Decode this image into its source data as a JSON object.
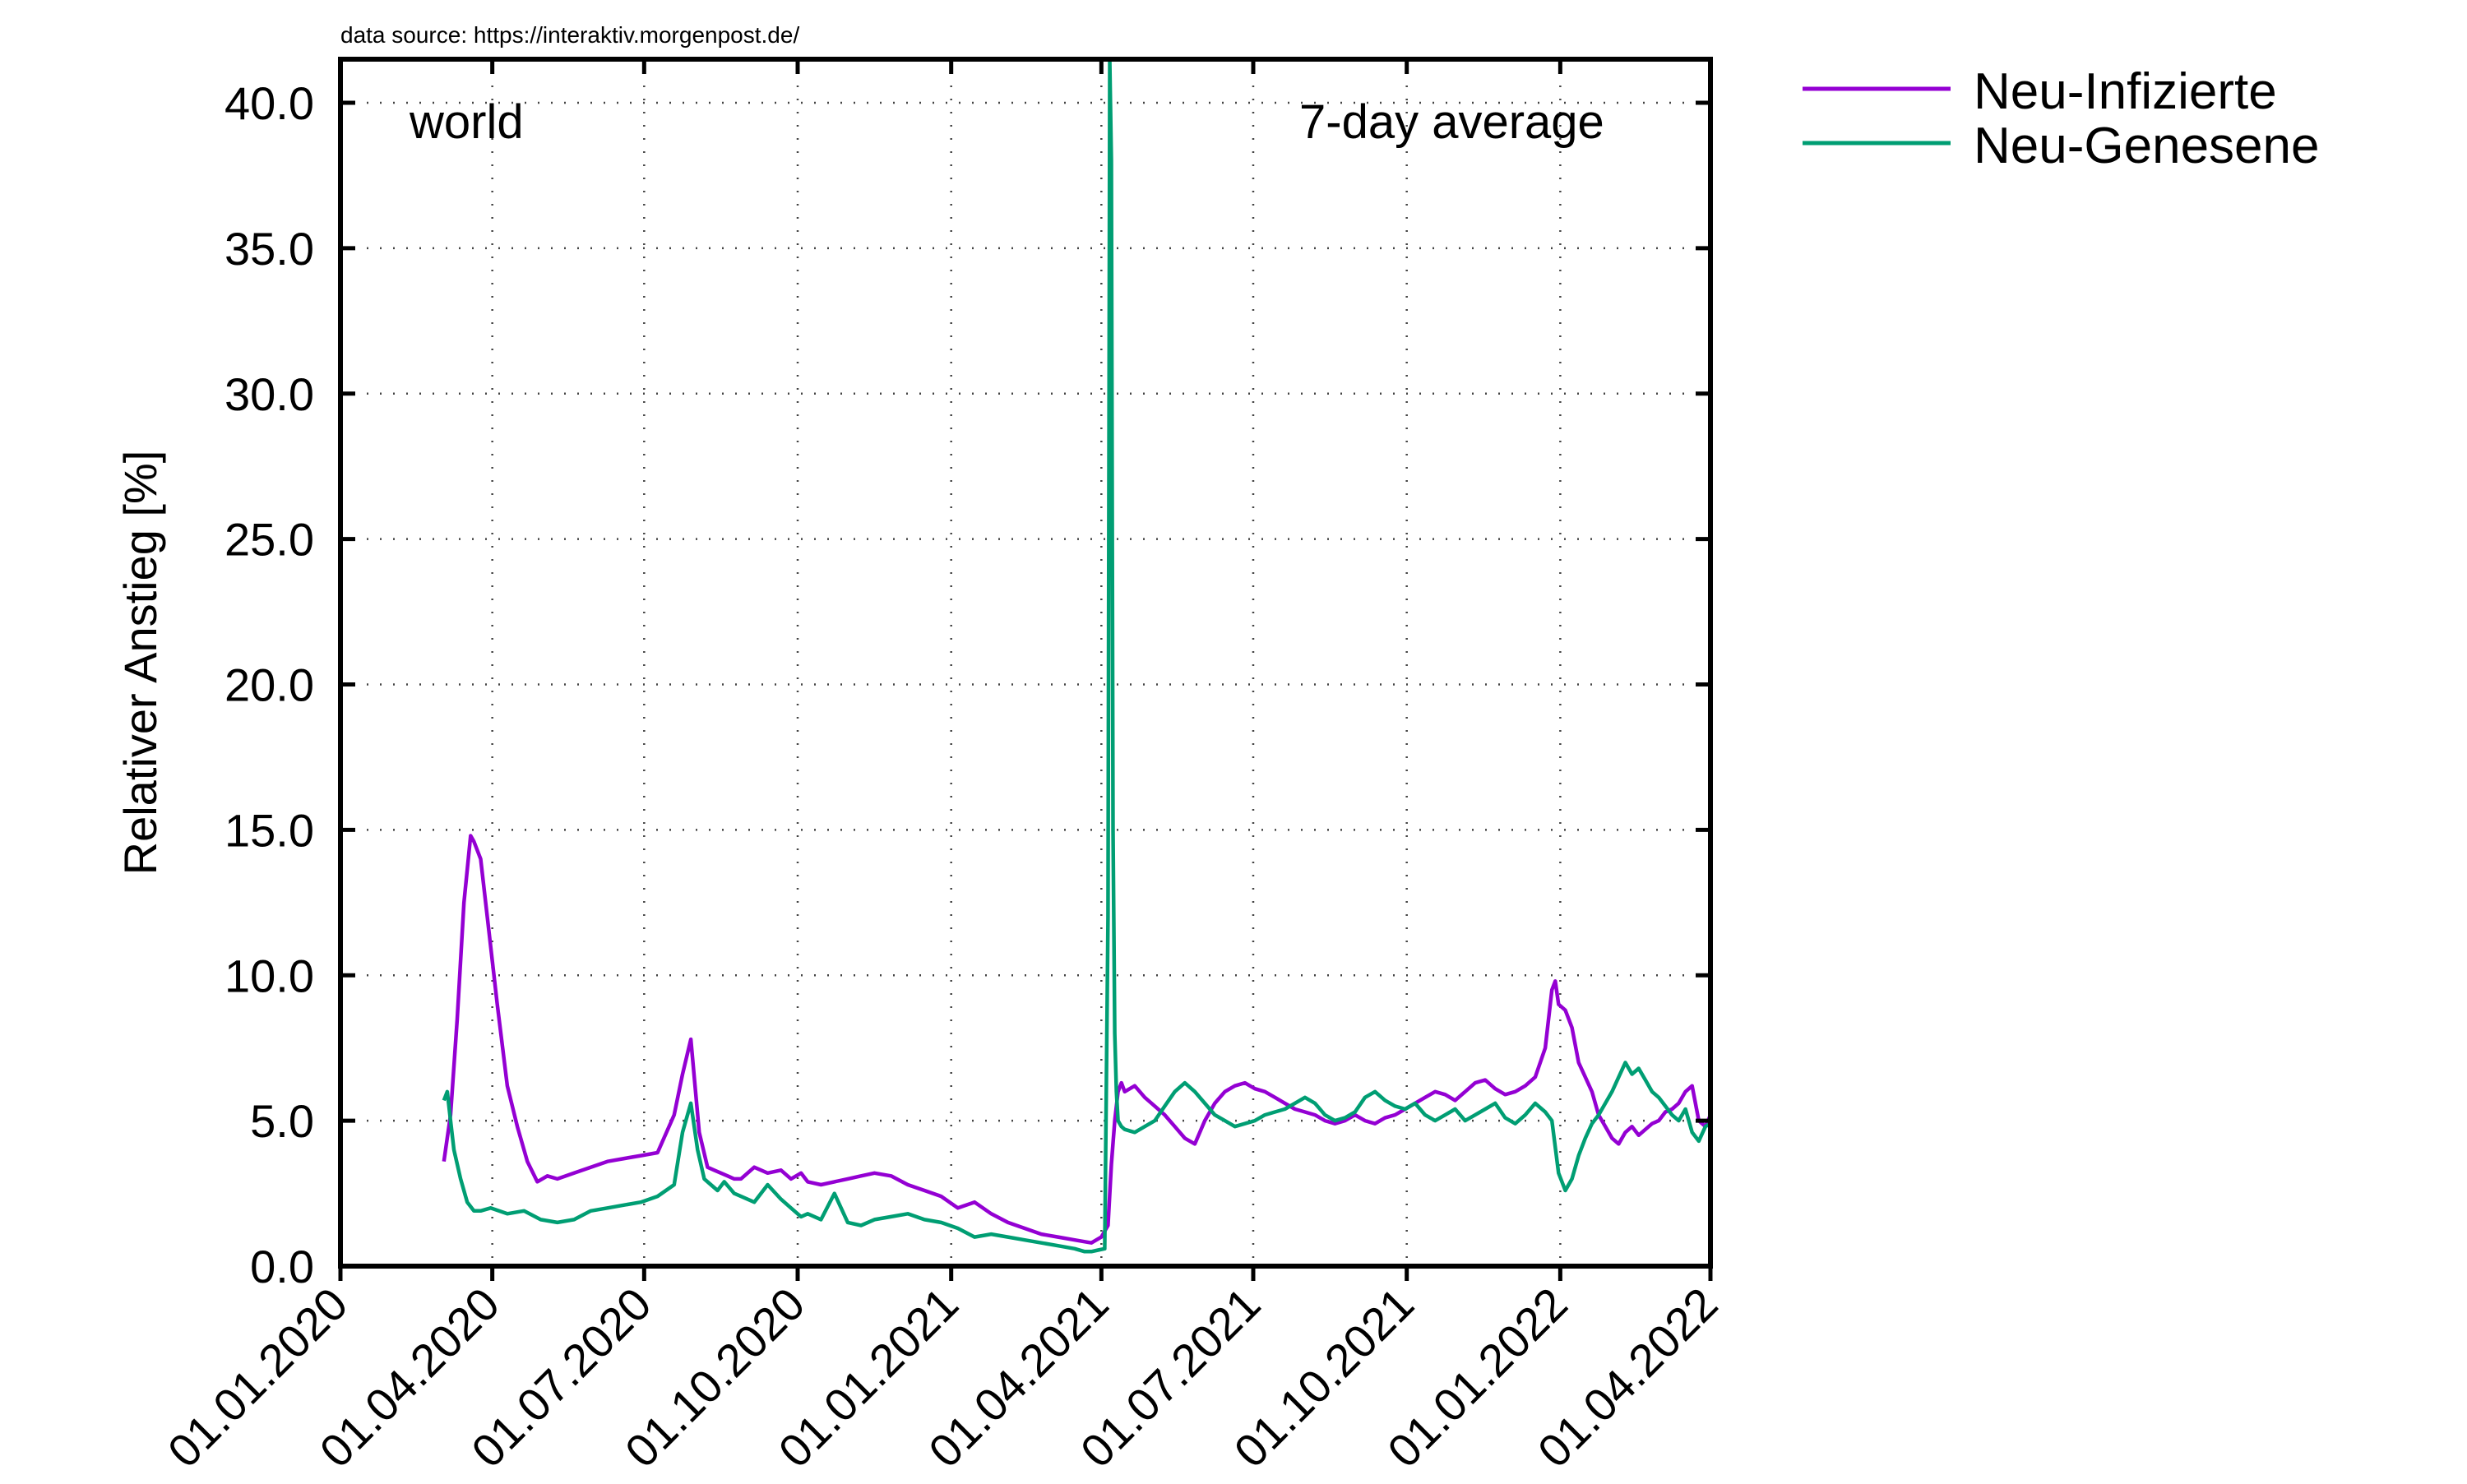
{
  "chart_data": {
    "type": "line",
    "title": "",
    "source_note": "data source: https://interaktiv.morgenpost.de/",
    "region_label": "world",
    "average_label": "7-day average",
    "xlabel": "",
    "ylabel": "Relativer Anstieg [%]",
    "ylim": [
      0,
      41.5
    ],
    "yticks": [
      0,
      5,
      10,
      15,
      20,
      25,
      30,
      35,
      40
    ],
    "ytick_labels": [
      "0.0",
      "5.0",
      "10.0",
      "15.0",
      "20.0",
      "25.0",
      "30.0",
      "35.0",
      "40.0"
    ],
    "xlim_days": [
      0,
      821
    ],
    "xticks_days": [
      0,
      91,
      182,
      274,
      366,
      456,
      547,
      639,
      731,
      821
    ],
    "xtick_labels": [
      "01.01.2020",
      "01.04.2020",
      "01.07.2020",
      "01.10.2020",
      "01.01.2021",
      "01.04.2021",
      "01.07.2021",
      "01.10.2021",
      "01.01.2022",
      "01.04.2022"
    ],
    "grid": true,
    "legend_position": "top-right-outside",
    "series": [
      {
        "name": "Neu-Infizierte",
        "color": "#9400d3",
        "x": [
          62,
          66,
          70,
          74,
          78,
          80,
          84,
          88,
          94,
          100,
          106,
          112,
          118,
          124,
          130,
          140,
          150,
          160,
          170,
          180,
          190,
          200,
          205,
          210,
          215,
          220,
          224,
          228,
          232,
          236,
          240,
          248,
          256,
          264,
          270,
          276,
          280,
          288,
          296,
          304,
          312,
          320,
          330,
          340,
          350,
          360,
          370,
          380,
          390,
          400,
          410,
          420,
          430,
          440,
          450,
          456,
          460,
          462,
          464,
          466,
          468,
          470,
          476,
          482,
          488,
          494,
          500,
          506,
          512,
          518,
          524,
          530,
          536,
          542,
          548,
          554,
          560,
          566,
          572,
          578,
          584,
          590,
          596,
          602,
          608,
          614,
          620,
          626,
          632,
          638,
          644,
          650,
          656,
          662,
          668,
          674,
          680,
          686,
          692,
          698,
          704,
          710,
          716,
          722,
          726,
          728,
          730,
          734,
          738,
          742,
          746,
          750,
          754,
          758,
          762,
          766,
          770,
          774,
          778,
          782,
          786,
          790,
          794,
          798,
          802,
          806,
          810,
          814,
          818,
          821
        ],
        "values": [
          3.6,
          5.2,
          8.5,
          12.5,
          14.8,
          14.6,
          14.0,
          12.0,
          9.0,
          6.2,
          4.8,
          3.6,
          2.9,
          3.1,
          3.0,
          3.2,
          3.4,
          3.6,
          3.7,
          3.8,
          3.9,
          5.2,
          6.6,
          7.8,
          4.6,
          3.4,
          3.3,
          3.2,
          3.1,
          3.0,
          3.0,
          3.4,
          3.2,
          3.3,
          3.0,
          3.2,
          2.9,
          2.8,
          2.9,
          3.0,
          3.1,
          3.2,
          3.1,
          2.8,
          2.6,
          2.4,
          2.0,
          2.2,
          1.8,
          1.5,
          1.3,
          1.1,
          1.0,
          0.9,
          0.8,
          1.0,
          1.4,
          3.5,
          5.0,
          6.0,
          6.3,
          6.0,
          6.2,
          5.8,
          5.5,
          5.2,
          4.8,
          4.4,
          4.2,
          5.0,
          5.6,
          6.0,
          6.2,
          6.3,
          6.1,
          6.0,
          5.8,
          5.6,
          5.4,
          5.3,
          5.2,
          5.0,
          4.9,
          5.0,
          5.2,
          5.0,
          4.9,
          5.1,
          5.2,
          5.4,
          5.6,
          5.8,
          6.0,
          5.9,
          5.7,
          6.0,
          6.3,
          6.4,
          6.1,
          5.9,
          6.0,
          6.2,
          6.5,
          7.5,
          9.5,
          9.8,
          9.0,
          8.8,
          8.2,
          7.0,
          6.5,
          6.0,
          5.2,
          4.8,
          4.4,
          4.2,
          4.6,
          4.8,
          4.5,
          4.7,
          4.9,
          5.0,
          5.3,
          5.4,
          5.6,
          6.0,
          6.2,
          5.0,
          4.8,
          5.2
        ]
      },
      {
        "name": "Neu-Genesene",
        "color": "#009e73",
        "x": [
          62,
          64,
          66,
          68,
          72,
          76,
          80,
          84,
          90,
          100,
          110,
          120,
          130,
          140,
          150,
          160,
          170,
          180,
          190,
          200,
          205,
          210,
          214,
          218,
          222,
          226,
          230,
          236,
          240,
          248,
          256,
          264,
          270,
          276,
          280,
          288,
          296,
          304,
          312,
          320,
          330,
          340,
          350,
          360,
          370,
          380,
          390,
          400,
          410,
          420,
          430,
          440,
          446,
          450,
          454,
          458,
          460,
          461,
          462,
          463,
          464,
          465,
          466,
          468,
          470,
          476,
          482,
          488,
          494,
          500,
          506,
          512,
          518,
          524,
          530,
          536,
          542,
          548,
          554,
          560,
          566,
          572,
          578,
          584,
          590,
          596,
          602,
          608,
          614,
          620,
          626,
          632,
          638,
          644,
          650,
          656,
          662,
          668,
          674,
          680,
          686,
          692,
          698,
          704,
          710,
          716,
          722,
          726,
          730,
          734,
          738,
          742,
          746,
          750,
          754,
          758,
          762,
          766,
          770,
          774,
          778,
          782,
          786,
          790,
          794,
          798,
          802,
          806,
          810,
          814,
          818,
          821
        ],
        "values": [
          5.7,
          6.0,
          5.0,
          4.0,
          3.0,
          2.2,
          1.9,
          1.9,
          2.0,
          1.8,
          1.9,
          1.6,
          1.5,
          1.6,
          1.9,
          2.0,
          2.1,
          2.2,
          2.4,
          2.8,
          4.6,
          5.6,
          4.0,
          3.0,
          2.8,
          2.6,
          2.9,
          2.5,
          2.4,
          2.2,
          2.8,
          2.3,
          2.0,
          1.7,
          1.8,
          1.6,
          2.5,
          1.5,
          1.4,
          1.6,
          1.7,
          1.8,
          1.6,
          1.5,
          1.3,
          1.0,
          1.1,
          1.0,
          0.9,
          0.8,
          0.7,
          0.6,
          0.5,
          0.5,
          0.55,
          0.6,
          12.0,
          41.5,
          38.0,
          15.0,
          8.0,
          6.0,
          5.0,
          4.8,
          4.7,
          4.6,
          4.8,
          5.0,
          5.5,
          6.0,
          6.3,
          6.0,
          5.6,
          5.2,
          5.0,
          4.8,
          4.9,
          5.0,
          5.2,
          5.3,
          5.4,
          5.6,
          5.8,
          5.6,
          5.2,
          5.0,
          5.1,
          5.3,
          5.8,
          6.0,
          5.7,
          5.5,
          5.4,
          5.6,
          5.2,
          5.0,
          5.2,
          5.4,
          5.0,
          5.2,
          5.4,
          5.6,
          5.1,
          4.9,
          5.2,
          5.6,
          5.3,
          5.0,
          3.2,
          2.6,
          3.0,
          3.8,
          4.4,
          4.9,
          5.2,
          5.6,
          6.0,
          6.5,
          7.0,
          6.6,
          6.8,
          6.4,
          6.0,
          5.8,
          5.5,
          5.2,
          5.0,
          5.4,
          4.6,
          4.3,
          4.8,
          4.9
        ]
      }
    ]
  }
}
